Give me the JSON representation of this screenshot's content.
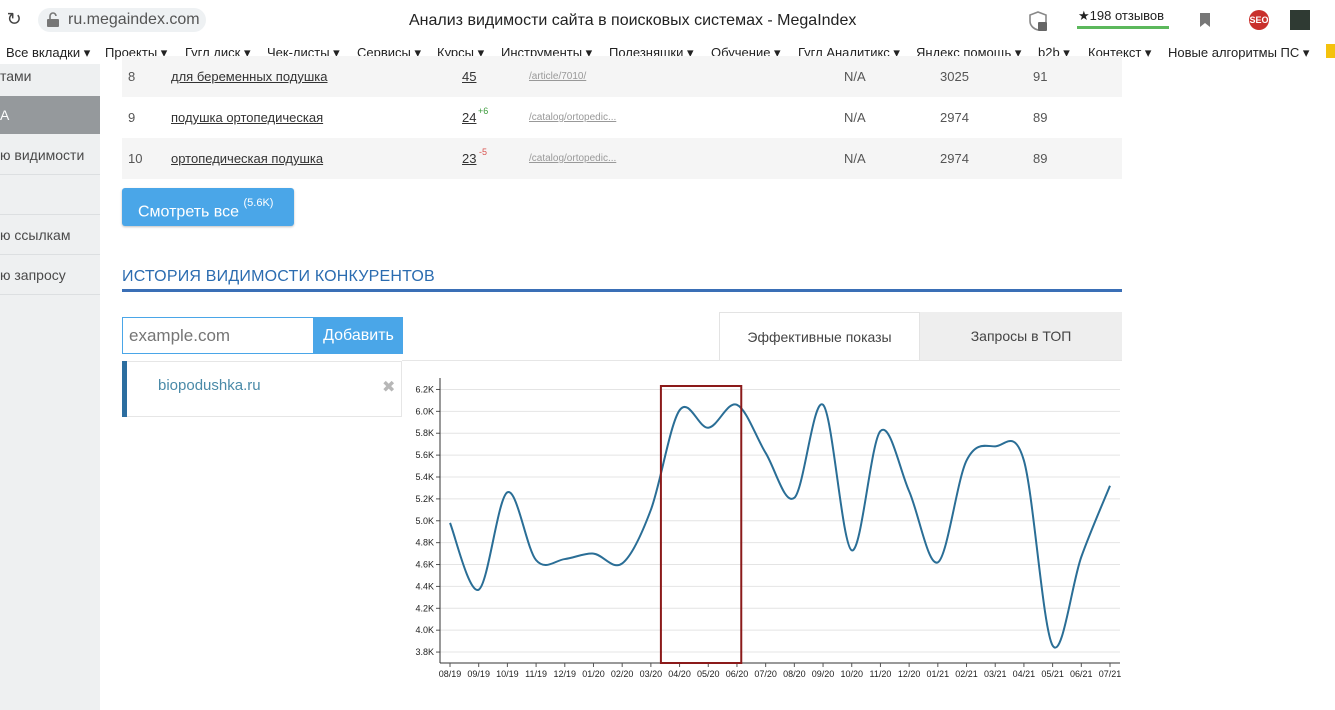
{
  "browser": {
    "url": "ru.megaindex.com",
    "title": "Анализ видимости сайта в поисковых системах - MegaIndex",
    "reviews": "★198 отзывов",
    "seo_badge": "SEO"
  },
  "bookmarks": [
    "Все вкладки ▾",
    "Проекты ▾",
    "Гугл диск ▾",
    "Чек-листы ▾",
    "Сервисы ▾",
    "Курсы ▾",
    "Инструменты ▾",
    "Полезняшки ▾",
    "Обучение ▾",
    "Гугл Аналитикс ▾",
    "Яндекс помощь ▾",
    "b2b ▾",
    "Контекст ▾",
    "Новые алгоритмы ПС ▾"
  ],
  "sidebar": {
    "items": [
      "тами",
      "А",
      "ю видимости",
      "ю ссылкам",
      "ю запросу"
    ]
  },
  "table": {
    "rows": [
      {
        "num": "8",
        "query": "для беременных подушка",
        "position": "45",
        "delta": "",
        "url": "/article/7010/",
        "na": "N/A",
        "freq": "3025",
        "visibility": "91"
      },
      {
        "num": "9",
        "query": "подушка ортопедическая",
        "position": "24",
        "delta": "+6",
        "url": "/catalog/ortopedic...",
        "na": "N/A",
        "freq": "2974",
        "visibility": "89"
      },
      {
        "num": "10",
        "query": "ортопедическая подушка",
        "position": "23",
        "delta": "-5",
        "url": "/catalog/ortopedic...",
        "na": "N/A",
        "freq": "2974",
        "visibility": "89"
      }
    ]
  },
  "view_all": {
    "label": "Смотреть все",
    "count": "(5.6K)"
  },
  "competitors": {
    "heading": "ИСТОРИЯ ВИДИМОСТИ КОНКУРЕНТОВ",
    "input_placeholder": "example.com",
    "add_label": "Добавить",
    "tabs": [
      "Эффективные показы",
      "Запросы в ТОП"
    ],
    "domain": "biopodushka.ru",
    "remove_glyph": "✖"
  },
  "chart_data": {
    "type": "line",
    "title": "",
    "xlabel": "",
    "ylabel": "",
    "ylim": [
      3.7,
      6.25
    ],
    "y_ticks": [
      "3.8K",
      "4.0K",
      "4.2K",
      "4.4K",
      "4.6K",
      "4.8K",
      "5.0K",
      "5.2K",
      "5.4K",
      "5.6K",
      "5.8K",
      "6.0K",
      "6.2K"
    ],
    "y_tick_values": [
      3.8,
      4.0,
      4.2,
      4.4,
      4.6,
      4.8,
      5.0,
      5.2,
      5.4,
      5.6,
      5.8,
      6.0,
      6.2
    ],
    "categories": [
      "08/19",
      "09/19",
      "10/19",
      "11/19",
      "12/19",
      "01/20",
      "02/20",
      "03/20",
      "04/20",
      "05/20",
      "06/20",
      "07/20",
      "08/20",
      "09/20",
      "10/20",
      "11/20",
      "12/20",
      "01/21",
      "02/21",
      "03/21",
      "04/21",
      "05/21",
      "06/21",
      "07/21"
    ],
    "series": [
      {
        "color": "#2a6e96",
        "values": [
          4.98,
          4.37,
          5.26,
          4.64,
          4.65,
          4.7,
          4.61,
          5.1,
          6.01,
          5.85,
          6.06,
          5.62,
          5.21,
          6.06,
          4.73,
          5.82,
          5.27,
          4.62,
          5.55,
          5.68,
          5.55,
          3.86,
          4.67,
          5.32
        ]
      }
    ],
    "highlight": {
      "from": "04/20",
      "to": "06/20",
      "color": "#8b1a1a"
    },
    "grid": true
  }
}
